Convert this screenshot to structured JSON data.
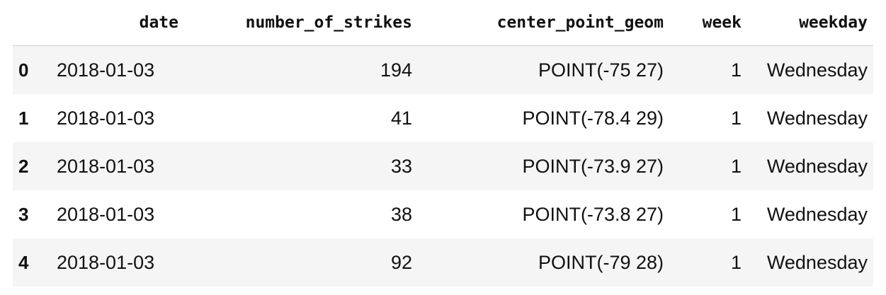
{
  "table": {
    "index_header": "",
    "columns": [
      "date",
      "number_of_strikes",
      "center_point_geom",
      "week",
      "weekday"
    ],
    "rows": [
      {
        "index": "0",
        "date": "2018-01-03",
        "number_of_strikes": "194",
        "center_point_geom": "POINT(-75 27)",
        "week": "1",
        "weekday": "Wednesday"
      },
      {
        "index": "1",
        "date": "2018-01-03",
        "number_of_strikes": "41",
        "center_point_geom": "POINT(-78.4 29)",
        "week": "1",
        "weekday": "Wednesday"
      },
      {
        "index": "2",
        "date": "2018-01-03",
        "number_of_strikes": "33",
        "center_point_geom": "POINT(-73.9 27)",
        "week": "1",
        "weekday": "Wednesday"
      },
      {
        "index": "3",
        "date": "2018-01-03",
        "number_of_strikes": "38",
        "center_point_geom": "POINT(-73.8 27)",
        "week": "1",
        "weekday": "Wednesday"
      },
      {
        "index": "4",
        "date": "2018-01-03",
        "number_of_strikes": "92",
        "center_point_geom": "POINT(-79 28)",
        "week": "1",
        "weekday": "Wednesday"
      }
    ]
  }
}
